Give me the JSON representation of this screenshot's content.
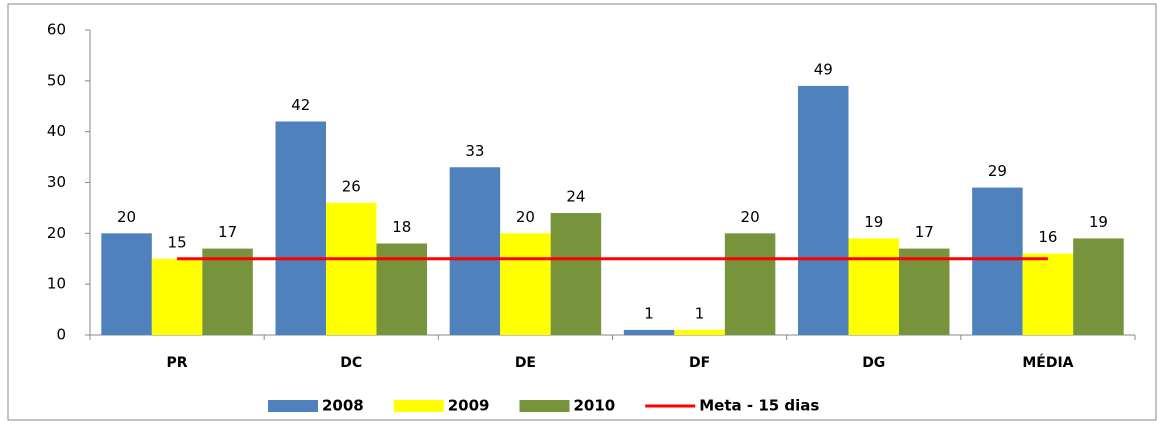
{
  "chart_data": {
    "type": "bar",
    "categories": [
      "PR",
      "DC",
      "DE",
      "DF",
      "DG",
      "MÉDIA"
    ],
    "series": [
      {
        "name": "2008",
        "color": "#4f81bd",
        "values": [
          20,
          42,
          33,
          1,
          49,
          29
        ]
      },
      {
        "name": "2009",
        "color": "#ffff00",
        "values": [
          15,
          26,
          20,
          1,
          19,
          16
        ]
      },
      {
        "name": "2010",
        "color": "#77933c",
        "values": [
          17,
          18,
          24,
          20,
          17,
          19
        ]
      },
      {
        "name": "Meta - 15 dias",
        "type": "line",
        "color": "#ff0000",
        "values": [
          15,
          15,
          15,
          15,
          15,
          15
        ]
      }
    ],
    "ylim": [
      0,
      60
    ],
    "yticks": [
      0,
      10,
      20,
      30,
      40,
      50,
      60
    ],
    "grid": false,
    "legend": "bottom"
  }
}
